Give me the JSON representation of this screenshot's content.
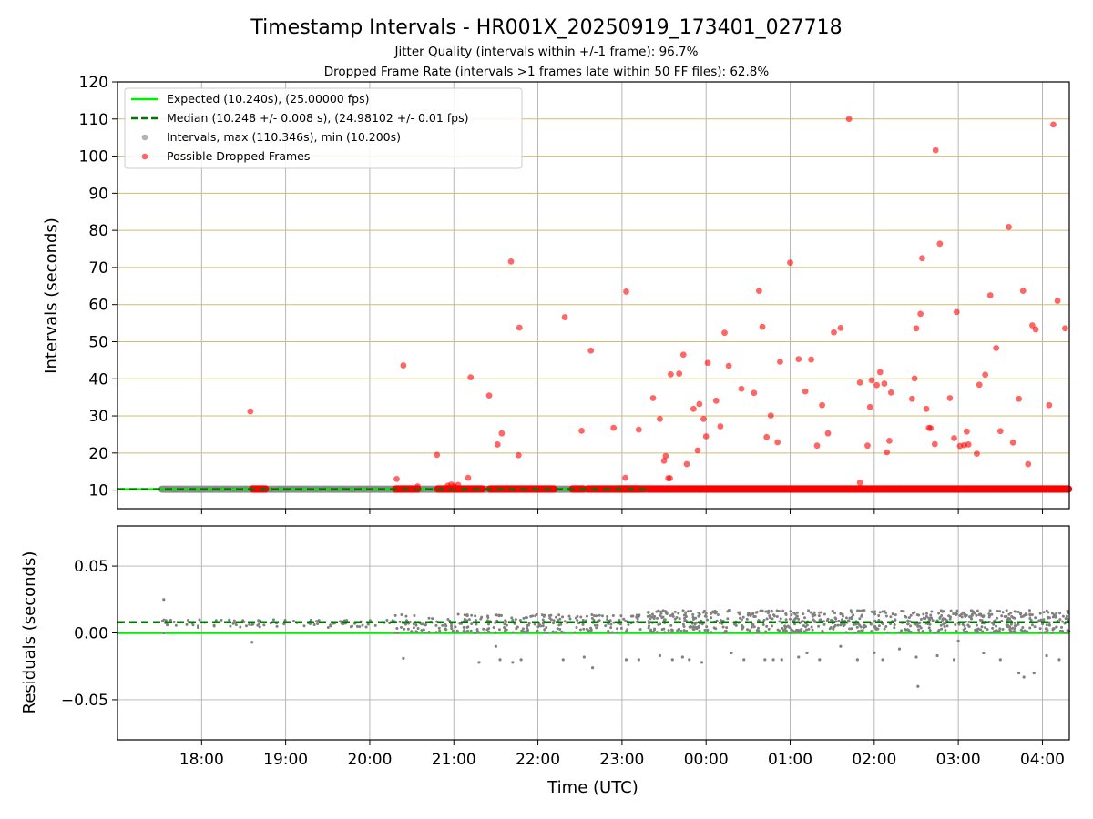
{
  "figure": {
    "title": "Timestamp Intervals - HR001X_20250919_173401_027718",
    "subtitle_jitter": "Jitter Quality (intervals within +/-1 frame): 96.7%",
    "subtitle_dropped": "Dropped Frame Rate (intervals >1 frames late within 50 FF files): 62.8%"
  },
  "chart_data": [
    {
      "type": "scatter",
      "panel": "top",
      "title": "Timestamp Intervals - HR001X_20250919_173401_027718",
      "xlabel": "",
      "ylabel": "Intervals (seconds)",
      "x_units": "hours since 17:00 UTC",
      "xlim": [
        0.0,
        11.32
      ],
      "ylim": [
        5,
        120
      ],
      "y_ticks": [
        10,
        20,
        30,
        40,
        50,
        60,
        70,
        80,
        90,
        100,
        110,
        120
      ],
      "y_tick_labels": [
        "10",
        "20",
        "30",
        "40",
        "50",
        "60",
        "70",
        "80",
        "90",
        "100",
        "110",
        "120"
      ],
      "x_ticks": [
        1,
        2,
        3,
        4,
        5,
        6,
        7,
        8,
        9,
        10,
        11
      ],
      "grid": true,
      "legend_position": "top-left",
      "legend": [
        "Expected (10.240s), (25.00000 fps)",
        "Median (10.248 +/- 0.008 s), (24.98102 +/- 0.01 fps)",
        "Intervals, max (110.346s), min (10.200s)",
        "Possible Dropped Frames"
      ],
      "series": [
        {
          "name": "Expected (10.240s), (25.00000 fps)",
          "kind": "hline",
          "y": 10.24,
          "color": "#00ee00"
        },
        {
          "name": "Median (10.248 +/- 0.008 s), (24.98102 +/- 0.01 fps)",
          "kind": "hline",
          "y": 10.248,
          "color": "#007700"
        },
        {
          "name": "Intervals, max (110.346s), min (10.200s)",
          "kind": "baseline-band",
          "y": 10.25,
          "x_ranges": [
            [
              0.52,
              6.28
            ],
            [
              6.3,
              11.32
            ]
          ],
          "color": "#808080"
        },
        {
          "name": "Possible Dropped Frames",
          "kind": "dense-band",
          "y": 10.3,
          "x_ranges": [
            [
              1.6,
              1.77
            ],
            [
              3.3,
              3.58
            ],
            [
              3.8,
              4.35
            ],
            [
              4.42,
              5.2
            ],
            [
              5.4,
              5.55
            ],
            [
              5.58,
              6.22
            ],
            [
              5.95,
              11.32
            ]
          ],
          "color": "#ff0000"
        },
        {
          "name": "Possible Dropped Frames",
          "kind": "scatter",
          "color": "#ff0000",
          "points": [
            [
              1.58,
              31.2
            ],
            [
              3.32,
              13
            ],
            [
              3.4,
              43.6
            ],
            [
              3.57,
              11
            ],
            [
              3.93,
              11.2
            ],
            [
              3.97,
              11.5
            ],
            [
              3.8,
              19.5
            ],
            [
              4.0,
              11
            ],
            [
              4.05,
              11.4
            ],
            [
              4.17,
              13.3
            ],
            [
              4.2,
              40.4
            ],
            [
              4.42,
              35.5
            ],
            [
              4.52,
              22.3
            ],
            [
              4.57,
              25.3
            ],
            [
              4.68,
              71.6
            ],
            [
              4.78,
              53.8
            ],
            [
              4.77,
              19.4
            ],
            [
              5.32,
              56.6
            ],
            [
              5.52,
              26
            ],
            [
              5.63,
              47.6
            ],
            [
              5.9,
              26.8
            ],
            [
              6.04,
              13.3
            ],
            [
              6.05,
              63.5
            ],
            [
              6.2,
              26.3
            ],
            [
              6.37,
              34.8
            ],
            [
              6.45,
              29.2
            ],
            [
              6.5,
              17.9
            ],
            [
              6.52,
              19.2
            ],
            [
              6.55,
              13.2
            ],
            [
              6.57,
              13.2
            ],
            [
              6.58,
              41.2
            ],
            [
              6.68,
              41.4
            ],
            [
              6.73,
              46.5
            ],
            [
              6.77,
              17
            ],
            [
              6.85,
              31.9
            ],
            [
              6.9,
              20.7
            ],
            [
              6.92,
              33.2
            ],
            [
              6.97,
              29.2
            ],
            [
              7.0,
              24.5
            ],
            [
              7.02,
              44.3
            ],
            [
              7.12,
              34.1
            ],
            [
              7.17,
              27.2
            ],
            [
              7.22,
              52.4
            ],
            [
              7.27,
              43.5
            ],
            [
              7.42,
              37.3
            ],
            [
              7.57,
              36.2
            ],
            [
              7.63,
              63.7
            ],
            [
              7.67,
              54
            ],
            [
              7.72,
              24.3
            ],
            [
              7.77,
              30.1
            ],
            [
              7.85,
              22.9
            ],
            [
              7.88,
              44.6
            ],
            [
              8.0,
              71.3
            ],
            [
              8.1,
              45.3
            ],
            [
              8.18,
              36.6
            ],
            [
              8.25,
              45.2
            ],
            [
              8.32,
              22
            ],
            [
              8.38,
              32.9
            ],
            [
              8.45,
              25.3
            ],
            [
              8.52,
              52.5
            ],
            [
              8.6,
              53.7
            ],
            [
              8.7,
              110
            ],
            [
              8.83,
              39
            ],
            [
              8.83,
              12
            ],
            [
              8.92,
              22
            ],
            [
              8.95,
              32.4
            ],
            [
              8.97,
              39.6
            ],
            [
              9.03,
              38.3
            ],
            [
              9.07,
              41.8
            ],
            [
              9.12,
              38.7
            ],
            [
              9.15,
              20.2
            ],
            [
              9.18,
              23.3
            ],
            [
              9.2,
              36.3
            ],
            [
              9.45,
              34.6
            ],
            [
              9.48,
              40.1
            ],
            [
              9.5,
              53.6
            ],
            [
              9.55,
              57.5
            ],
            [
              9.57,
              72.5
            ],
            [
              9.62,
              31.9
            ],
            [
              9.65,
              26.8
            ],
            [
              9.67,
              26.7
            ],
            [
              9.72,
              22.4
            ],
            [
              9.73,
              101.6
            ],
            [
              9.78,
              76.4
            ],
            [
              9.9,
              34.8
            ],
            [
              9.95,
              24
            ],
            [
              9.98,
              58
            ],
            [
              10.02,
              21.9
            ],
            [
              10.07,
              22.1
            ],
            [
              10.1,
              25.8
            ],
            [
              10.12,
              22.3
            ],
            [
              10.22,
              19.8
            ],
            [
              10.25,
              38.4
            ],
            [
              10.32,
              41.1
            ],
            [
              10.38,
              62.5
            ],
            [
              10.45,
              48.3
            ],
            [
              10.5,
              25.9
            ],
            [
              10.6,
              80.9
            ],
            [
              10.65,
              22.8
            ],
            [
              10.72,
              34.6
            ],
            [
              10.77,
              63.7
            ],
            [
              10.83,
              17
            ],
            [
              10.88,
              54.4
            ],
            [
              10.92,
              53.3
            ],
            [
              11.08,
              32.9
            ],
            [
              11.13,
              108.5
            ],
            [
              11.18,
              61
            ],
            [
              11.27,
              53.6
            ]
          ]
        }
      ]
    },
    {
      "type": "scatter",
      "panel": "bottom",
      "title": "",
      "xlabel": "Time (UTC)",
      "ylabel": "Residuals (seconds)",
      "x_units": "hours since 17:00 UTC",
      "xlim": [
        0.0,
        11.32
      ],
      "ylim": [
        -0.08,
        0.08
      ],
      "y_ticks": [
        -0.05,
        0.0,
        0.05
      ],
      "y_tick_labels": [
        "−0.05",
        "0.00",
        "0.05"
      ],
      "x_ticks": [
        1,
        2,
        3,
        4,
        5,
        6,
        7,
        8,
        9,
        10,
        11
      ],
      "x_tick_labels": [
        "18:00",
        "19:00",
        "20:00",
        "21:00",
        "22:00",
        "23:00",
        "00:00",
        "01:00",
        "02:00",
        "03:00",
        "04:00"
      ],
      "grid": true,
      "series": [
        {
          "name": "Expected",
          "kind": "hline",
          "y": 0.0,
          "color": "#00ee00"
        },
        {
          "name": "Median",
          "kind": "hline",
          "y": 0.008,
          "color": "#007700"
        },
        {
          "name": "Residuals",
          "kind": "scatter-band",
          "color": "#808080",
          "segments": [
            {
              "x_range": [
                0.52,
                3.3
              ],
              "y_range": [
                0.004,
                0.01
              ],
              "count": 90
            },
            {
              "x_range": [
                3.3,
                6.3
              ],
              "y_range": [
                0.0,
                0.014
              ],
              "count": 260
            },
            {
              "x_range": [
                6.3,
                11.32
              ],
              "y_range": [
                0.0,
                0.017
              ],
              "count": 700
            }
          ],
          "outliers": [
            [
              0.55,
              0.025
            ],
            [
              0.55,
              0.0
            ],
            [
              1.6,
              -0.007
            ],
            [
              3.4,
              -0.019
            ],
            [
              4.3,
              -0.022
            ],
            [
              4.5,
              -0.01
            ],
            [
              4.55,
              -0.02
            ],
            [
              4.7,
              -0.022
            ],
            [
              4.8,
              -0.02
            ],
            [
              5.3,
              -0.02
            ],
            [
              5.55,
              -0.018
            ],
            [
              5.65,
              -0.026
            ],
            [
              6.05,
              -0.02
            ],
            [
              6.2,
              -0.02
            ],
            [
              6.45,
              -0.017
            ],
            [
              6.6,
              -0.02
            ],
            [
              6.72,
              -0.018
            ],
            [
              6.8,
              -0.02
            ],
            [
              6.95,
              -0.022
            ],
            [
              7.3,
              -0.015
            ],
            [
              7.45,
              -0.02
            ],
            [
              7.7,
              -0.02
            ],
            [
              7.8,
              -0.02
            ],
            [
              7.9,
              -0.02
            ],
            [
              8.1,
              -0.018
            ],
            [
              8.2,
              -0.015
            ],
            [
              8.35,
              -0.02
            ],
            [
              8.6,
              -0.01
            ],
            [
              8.8,
              -0.02
            ],
            [
              9.0,
              -0.015
            ],
            [
              9.1,
              -0.02
            ],
            [
              9.3,
              -0.012
            ],
            [
              9.5,
              -0.018
            ],
            [
              9.52,
              -0.04
            ],
            [
              9.75,
              -0.017
            ],
            [
              9.95,
              -0.02
            ],
            [
              10.0,
              -0.006
            ],
            [
              10.3,
              -0.015
            ],
            [
              10.5,
              -0.02
            ],
            [
              10.72,
              -0.03
            ],
            [
              10.78,
              -0.033
            ],
            [
              10.9,
              -0.03
            ],
            [
              11.05,
              -0.017
            ],
            [
              11.2,
              -0.02
            ],
            [
              3.9,
              0.003
            ],
            [
              4.25,
              0.0
            ],
            [
              6.6,
              0.002
            ]
          ]
        }
      ]
    }
  ]
}
